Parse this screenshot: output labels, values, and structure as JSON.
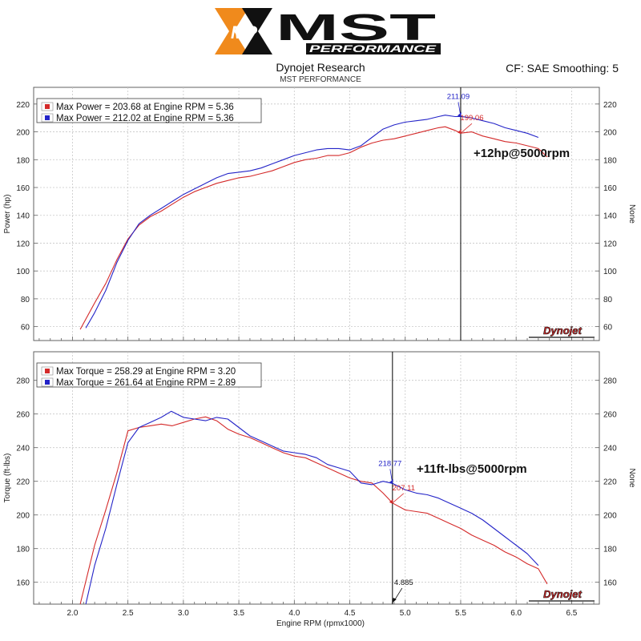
{
  "header": {
    "logo_text": "MST",
    "logo_sub": "PERFORMANCE",
    "logo_badge": "MP",
    "title": "Dynojet Research",
    "subtitle": "MST PERFORMANCE",
    "right_info": "CF: SAE Smoothing: 5"
  },
  "colors": {
    "run1": "#d42a2a",
    "run2": "#2424c8",
    "grid": "#c8c8c8",
    "frame": "#606060",
    "cursor": "#000000"
  },
  "chart_data": [
    {
      "type": "line",
      "ylabel": "Power (hp)",
      "ylabel_right": "None",
      "xlabel": "",
      "xlim": [
        1.65,
        6.75
      ],
      "ylim": [
        50,
        232
      ],
      "xticks": [
        2.0,
        2.5,
        3.0,
        3.5,
        4.0,
        4.5,
        5.0,
        5.5,
        6.0,
        6.5
      ],
      "xtick_labels": [],
      "yticks": [
        60,
        80,
        100,
        120,
        140,
        160,
        180,
        200,
        220
      ],
      "grid": true,
      "legend_position": "top-left",
      "cursor_x": 5.5,
      "watermark": "Dynojet",
      "annotation": {
        "text": "+12hp@5000rpm",
        "x": 6.05,
        "y": 182
      },
      "series": [
        {
          "name": "Max Power = 203.68 at Engine RPM = 5.36",
          "color_key": "run1",
          "cursor_value": "199.06",
          "cursor_y": 199.06,
          "x": [
            2.07,
            2.2,
            2.3,
            2.4,
            2.5,
            2.6,
            2.7,
            2.8,
            2.9,
            3.0,
            3.1,
            3.2,
            3.3,
            3.4,
            3.5,
            3.6,
            3.7,
            3.8,
            3.9,
            4.0,
            4.1,
            4.2,
            4.3,
            4.4,
            4.5,
            4.6,
            4.7,
            4.8,
            4.9,
            5.0,
            5.1,
            5.2,
            5.3,
            5.36,
            5.45,
            5.5,
            5.6,
            5.7,
            5.8,
            5.9,
            6.0,
            6.1,
            6.2,
            6.28
          ],
          "y": [
            58,
            77,
            91,
            108,
            123,
            133,
            139,
            143,
            148,
            153,
            157,
            160,
            163,
            165,
            167,
            168,
            170,
            172,
            175,
            178,
            180,
            181,
            183,
            183,
            185,
            189,
            192,
            194,
            195,
            197,
            199,
            201,
            203,
            203.68,
            201,
            199.06,
            200,
            197,
            195,
            193,
            192,
            190,
            188,
            182
          ]
        },
        {
          "name": "Max Power = 212.02 at Engine RPM = 5.36",
          "color_key": "run2",
          "cursor_value": "211.09",
          "cursor_y": 211.09,
          "x": [
            2.12,
            2.2,
            2.3,
            2.4,
            2.5,
            2.6,
            2.7,
            2.8,
            2.9,
            3.0,
            3.1,
            3.2,
            3.3,
            3.4,
            3.5,
            3.6,
            3.7,
            3.8,
            3.9,
            4.0,
            4.1,
            4.2,
            4.3,
            4.4,
            4.5,
            4.6,
            4.7,
            4.8,
            4.9,
            5.0,
            5.1,
            5.2,
            5.3,
            5.36,
            5.45,
            5.5,
            5.6,
            5.7,
            5.8,
            5.9,
            6.0,
            6.1,
            6.2
          ],
          "y": [
            59,
            70,
            86,
            106,
            122,
            134,
            140,
            145,
            150,
            155,
            159,
            163,
            167,
            170,
            171,
            172,
            174,
            177,
            180,
            183,
            185,
            187,
            188,
            188,
            187,
            190,
            196,
            202,
            205,
            207,
            208,
            209,
            211,
            212.02,
            211,
            211.09,
            210,
            208,
            206,
            203,
            201,
            199,
            196
          ]
        }
      ]
    },
    {
      "type": "line",
      "ylabel": "Torque (ft-lbs)",
      "ylabel_right": "None",
      "xlabel": "Engine RPM (rpmx1000)",
      "xlim": [
        1.65,
        6.75
      ],
      "ylim": [
        147,
        297
      ],
      "xticks": [
        2.0,
        2.5,
        3.0,
        3.5,
        4.0,
        4.5,
        5.0,
        5.5,
        6.0,
        6.5
      ],
      "xtick_labels": [
        "2.0",
        "2.5",
        "3.0",
        "3.5",
        "4.0",
        "4.5",
        "5.0",
        "5.5",
        "6.0",
        "6.5"
      ],
      "yticks": [
        160,
        180,
        200,
        220,
        240,
        260,
        280
      ],
      "grid": true,
      "legend_position": "top-left",
      "cursor_x": 4.885,
      "cursor_label": "4.885",
      "watermark": "Dynojet",
      "annotation": {
        "text": "+11ft-lbs@5000rpm",
        "x": 5.6,
        "y": 225
      },
      "series": [
        {
          "name": "Max Torque = 258.29 at Engine RPM = 3.20",
          "color_key": "run1",
          "cursor_value": "207.11",
          "cursor_y": 207.11,
          "x": [
            2.07,
            2.2,
            2.3,
            2.4,
            2.5,
            2.6,
            2.7,
            2.8,
            2.9,
            3.0,
            3.1,
            3.2,
            3.3,
            3.4,
            3.5,
            3.6,
            3.7,
            3.8,
            3.9,
            4.0,
            4.1,
            4.2,
            4.3,
            4.4,
            4.5,
            4.6,
            4.7,
            4.8,
            4.885,
            5.0,
            5.1,
            5.2,
            5.3,
            5.4,
            5.5,
            5.6,
            5.7,
            5.8,
            5.9,
            6.0,
            6.1,
            6.2,
            6.28
          ],
          "y": [
            147,
            182,
            203,
            225,
            250,
            252,
            253,
            254,
            253,
            255,
            257,
            258.29,
            256,
            251,
            248,
            246,
            243,
            240,
            237,
            235,
            234,
            231,
            228,
            225,
            222,
            220,
            219,
            213,
            207.11,
            203,
            202,
            201,
            198,
            195,
            192,
            188,
            185,
            182,
            178,
            175,
            171,
            168,
            159
          ]
        },
        {
          "name": "Max Torque = 261.64 at Engine RPM = 2.89",
          "color_key": "run2",
          "cursor_value": "218.77",
          "cursor_y": 218.77,
          "x": [
            2.12,
            2.2,
            2.3,
            2.4,
            2.5,
            2.6,
            2.7,
            2.8,
            2.89,
            3.0,
            3.1,
            3.2,
            3.3,
            3.4,
            3.5,
            3.6,
            3.7,
            3.8,
            3.9,
            4.0,
            4.1,
            4.2,
            4.3,
            4.4,
            4.5,
            4.6,
            4.7,
            4.8,
            4.885,
            5.0,
            5.1,
            5.2,
            5.3,
            5.4,
            5.5,
            5.6,
            5.7,
            5.8,
            5.9,
            6.0,
            6.1,
            6.2
          ],
          "y": [
            147,
            170,
            192,
            218,
            243,
            252,
            255,
            258,
            261.64,
            258,
            257,
            256,
            258,
            257,
            252,
            247,
            244,
            241,
            238,
            237,
            236,
            234,
            230,
            228,
            226,
            219,
            218,
            220,
            218.77,
            215,
            213,
            212,
            210,
            207,
            204,
            201,
            197,
            192,
            187,
            182,
            177,
            170
          ]
        }
      ]
    }
  ]
}
